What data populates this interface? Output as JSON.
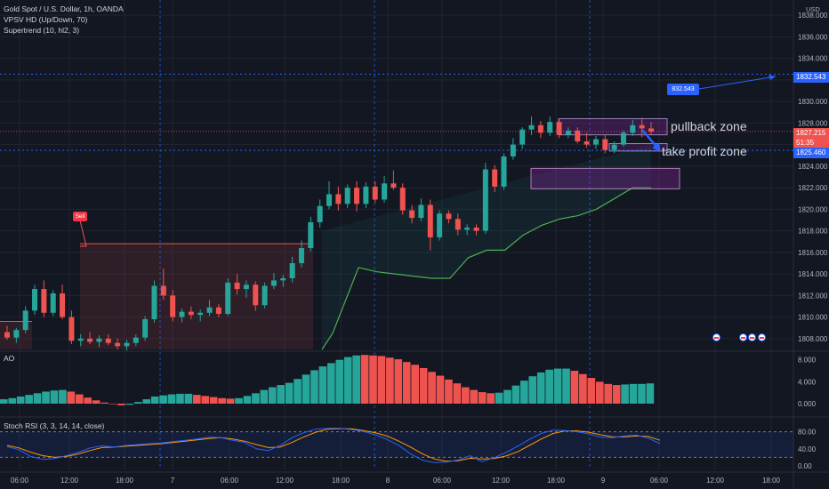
{
  "legend": {
    "title": "Gold Spot / U.S. Dollar, 1h, OANDA",
    "vpsv": "VPSV HD (Up/Down, 70)",
    "supertrend": "Supertrend (10, hl2, 3)"
  },
  "axis": {
    "currency": "USD",
    "price_ticks": [
      "1838.000",
      "1836.000",
      "1834.000",
      "1832.000",
      "1830.000",
      "1828.000",
      "1826.000",
      "1824.000",
      "1822.000",
      "1820.000",
      "1818.000",
      "1816.000",
      "1814.000",
      "1812.000",
      "1810.000",
      "1808.000"
    ],
    "ao_ticks": [
      "8.000",
      "4.000",
      "0.000"
    ],
    "rsi_ticks": [
      "80.00",
      "40.00",
      "0.00"
    ],
    "time_ticks": [
      "06:00",
      "12:00",
      "18:00",
      "7",
      "06:00",
      "12:00",
      "18:00",
      "8",
      "06:00",
      "12:00",
      "18:00",
      "9",
      "06:00",
      "12:00",
      "18:00"
    ]
  },
  "price_tags": {
    "target": "1832.543",
    "last": "1827.215",
    "countdown": "51:35",
    "support": "1825.460"
  },
  "annotations": {
    "callout": "832.543",
    "pullback": "pullback zone",
    "take_profit": "take profit zone",
    "sell": "Sell"
  },
  "panes": {
    "ao": "AO",
    "rsi": "Stoch RSI (3, 3, 14, 14, close)"
  },
  "colors": {
    "bg": "#131722",
    "up": "#26a69a",
    "down": "#ef5350",
    "accent": "#2962ff",
    "supertrend": "#4caf50",
    "zone": "#9c27b0"
  },
  "chart_data": {
    "type": "candlestick",
    "symbol": "XAUUSD",
    "interval": "1h",
    "ylim": [
      1807,
      1839
    ],
    "candles": [
      [
        1808.6,
        1809.2,
        1807.9,
        1808.1
      ],
      [
        1808.1,
        1809.0,
        1807.6,
        1808.8
      ],
      [
        1808.8,
        1811.0,
        1808.5,
        1810.6
      ],
      [
        1810.6,
        1813.0,
        1810.2,
        1812.6
      ],
      [
        1812.6,
        1813.4,
        1810.0,
        1810.4
      ],
      [
        1810.4,
        1812.5,
        1810.1,
        1812.2
      ],
      [
        1812.2,
        1813.0,
        1809.8,
        1810.0
      ],
      [
        1810.0,
        1810.6,
        1807.5,
        1807.8
      ],
      [
        1807.8,
        1808.4,
        1807.3,
        1808.0
      ],
      [
        1808.0,
        1808.6,
        1807.5,
        1807.7
      ],
      [
        1807.7,
        1808.3,
        1807.2,
        1808.0
      ],
      [
        1808.0,
        1808.4,
        1807.4,
        1807.6
      ],
      [
        1807.6,
        1808.0,
        1807.0,
        1807.3
      ],
      [
        1807.3,
        1807.9,
        1806.9,
        1807.6
      ],
      [
        1807.6,
        1808.4,
        1807.3,
        1808.1
      ],
      [
        1808.1,
        1810.1,
        1807.8,
        1809.8
      ],
      [
        1809.8,
        1813.4,
        1809.5,
        1812.9
      ],
      [
        1812.9,
        1814.5,
        1811.6,
        1812.0
      ],
      [
        1812.0,
        1812.5,
        1809.6,
        1810.0
      ],
      [
        1810.0,
        1810.8,
        1809.5,
        1810.5
      ],
      [
        1810.5,
        1811.0,
        1809.8,
        1810.2
      ],
      [
        1810.2,
        1810.7,
        1809.6,
        1810.4
      ],
      [
        1810.4,
        1811.6,
        1810.1,
        1810.9
      ],
      [
        1810.9,
        1811.2,
        1810.0,
        1810.3
      ],
      [
        1810.3,
        1813.6,
        1810.1,
        1813.2
      ],
      [
        1813.2,
        1814.0,
        1812.1,
        1812.6
      ],
      [
        1812.6,
        1813.4,
        1811.8,
        1813.0
      ],
      [
        1813.0,
        1813.3,
        1810.6,
        1811.1
      ],
      [
        1811.1,
        1813.2,
        1810.8,
        1812.9
      ],
      [
        1812.9,
        1814.1,
        1812.6,
        1813.4
      ],
      [
        1813.4,
        1813.9,
        1812.8,
        1813.6
      ],
      [
        1813.6,
        1815.6,
        1813.2,
        1815.0
      ],
      [
        1815.0,
        1817.1,
        1814.6,
        1816.4
      ],
      [
        1816.4,
        1819.3,
        1816.1,
        1818.8
      ],
      [
        1818.8,
        1820.9,
        1818.3,
        1820.3
      ],
      [
        1820.3,
        1822.6,
        1820.0,
        1821.4
      ],
      [
        1821.4,
        1822.1,
        1819.9,
        1820.5
      ],
      [
        1820.5,
        1822.3,
        1820.1,
        1822.0
      ],
      [
        1822.0,
        1822.6,
        1819.8,
        1820.5
      ],
      [
        1820.5,
        1822.5,
        1820.1,
        1822.1
      ],
      [
        1822.1,
        1822.6,
        1820.6,
        1820.9
      ],
      [
        1820.9,
        1823.1,
        1820.6,
        1822.4
      ],
      [
        1822.4,
        1823.6,
        1821.8,
        1822.0
      ],
      [
        1822.0,
        1822.4,
        1819.5,
        1819.9
      ],
      [
        1819.9,
        1820.4,
        1818.7,
        1819.2
      ],
      [
        1819.2,
        1821.0,
        1818.9,
        1820.4
      ],
      [
        1820.4,
        1820.9,
        1816.2,
        1817.4
      ],
      [
        1817.4,
        1819.9,
        1817.1,
        1819.6
      ],
      [
        1819.6,
        1819.9,
        1818.7,
        1819.1
      ],
      [
        1819.1,
        1819.6,
        1817.6,
        1818.1
      ],
      [
        1818.1,
        1818.6,
        1817.6,
        1818.3
      ],
      [
        1818.3,
        1818.6,
        1817.6,
        1818.0
      ],
      [
        1818.0,
        1824.3,
        1817.7,
        1823.7
      ],
      [
        1823.7,
        1824.1,
        1821.6,
        1822.1
      ],
      [
        1822.1,
        1825.2,
        1821.8,
        1824.9
      ],
      [
        1824.9,
        1826.6,
        1824.6,
        1826.0
      ],
      [
        1826.0,
        1827.6,
        1825.6,
        1827.4
      ],
      [
        1827.4,
        1828.6,
        1826.9,
        1827.8
      ],
      [
        1827.8,
        1828.2,
        1826.6,
        1827.1
      ],
      [
        1827.1,
        1828.6,
        1826.8,
        1828.1
      ],
      [
        1828.1,
        1828.4,
        1826.6,
        1826.9
      ],
      [
        1826.9,
        1827.6,
        1826.6,
        1827.3
      ],
      [
        1827.3,
        1827.6,
        1826.1,
        1826.3
      ],
      [
        1826.3,
        1827.1,
        1825.7,
        1826.0
      ],
      [
        1826.0,
        1826.8,
        1825.6,
        1826.5
      ],
      [
        1826.5,
        1826.9,
        1825.2,
        1825.5
      ],
      [
        1825.5,
        1826.3,
        1825.2,
        1826.0
      ],
      [
        1826.0,
        1827.3,
        1825.8,
        1827.1
      ],
      [
        1827.1,
        1828.3,
        1826.8,
        1827.8
      ],
      [
        1827.8,
        1828.5,
        1826.7,
        1827.5
      ],
      [
        1827.5,
        1828.1,
        1826.9,
        1827.2
      ]
    ],
    "supertrend": [
      1816.0,
      1815.2,
      1814.6,
      1814.2,
      1814.0,
      1813.8,
      1813.6,
      1813.6,
      1815.5,
      1816.2,
      1816.2,
      1817.6,
      1818.5,
      1819.1,
      1819.4,
      1820.0,
      1821.0,
      1822.0,
      1822.0
    ],
    "ao": [
      0.8,
      1.0,
      1.3,
      1.6,
      1.9,
      2.2,
      2.4,
      2.5,
      2.2,
      1.7,
      1.1,
      0.6,
      0.2,
      -0.1,
      -0.3,
      -0.2,
      0.3,
      0.8,
      1.3,
      1.5,
      1.7,
      1.8,
      1.8,
      1.6,
      1.4,
      1.2,
      1.0,
      0.9,
      1.0,
      1.4,
      1.9,
      2.5,
      3.0,
      3.4,
      3.8,
      4.5,
      5.3,
      6.1,
      6.8,
      7.4,
      8.0,
      8.5,
      8.8,
      8.9,
      8.8,
      8.7,
      8.4,
      8.1,
      7.6,
      7.1,
      6.5,
      5.8,
      5.1,
      4.4,
      3.7,
      3.0,
      2.5,
      2.1,
      1.9,
      2.0,
      2.5,
      3.3,
      4.2,
      5.0,
      5.7,
      6.2,
      6.4,
      6.4,
      6.0,
      5.4,
      4.7,
      4.0,
      3.6,
      3.4,
      3.5,
      3.6,
      3.6,
      3.7
    ],
    "ao_colors": [
      "u",
      "u",
      "u",
      "u",
      "u",
      "u",
      "u",
      "u",
      "d",
      "d",
      "d",
      "d",
      "d",
      "d",
      "d",
      "u",
      "u",
      "u",
      "u",
      "u",
      "u",
      "u",
      "u",
      "d",
      "d",
      "d",
      "d",
      "d",
      "u",
      "u",
      "u",
      "u",
      "u",
      "u",
      "u",
      "u",
      "u",
      "u",
      "u",
      "u",
      "u",
      "u",
      "u",
      "d",
      "d",
      "d",
      "d",
      "d",
      "d",
      "d",
      "d",
      "d",
      "d",
      "d",
      "d",
      "d",
      "d",
      "d",
      "d",
      "u",
      "u",
      "u",
      "u",
      "u",
      "u",
      "u",
      "u",
      "u",
      "d",
      "d",
      "d",
      "d",
      "d",
      "d",
      "u",
      "u",
      "u",
      "u"
    ],
    "stoch_k": [
      45,
      38,
      22,
      15,
      17,
      24,
      32,
      42,
      47,
      44,
      48,
      50,
      52,
      54,
      57,
      60,
      63,
      67,
      66,
      60,
      55,
      40,
      36,
      48,
      66,
      78,
      86,
      88,
      88,
      85,
      81,
      73,
      62,
      48,
      28,
      13,
      8,
      9,
      14,
      24,
      10,
      19,
      31,
      46,
      62,
      76,
      84,
      83,
      80,
      75,
      67,
      66,
      70,
      72,
      65,
      52
    ],
    "stoch_d": [
      48,
      42,
      32,
      24,
      20,
      22,
      28,
      36,
      43,
      44,
      46,
      48,
      50,
      52,
      55,
      58,
      61,
      64,
      66,
      63,
      58,
      50,
      43,
      44,
      55,
      68,
      79,
      86,
      87,
      87,
      83,
      78,
      70,
      58,
      44,
      28,
      16,
      11,
      12,
      18,
      16,
      17,
      23,
      33,
      48,
      63,
      76,
      82,
      82,
      79,
      73,
      68,
      68,
      70,
      69,
      60
    ]
  }
}
